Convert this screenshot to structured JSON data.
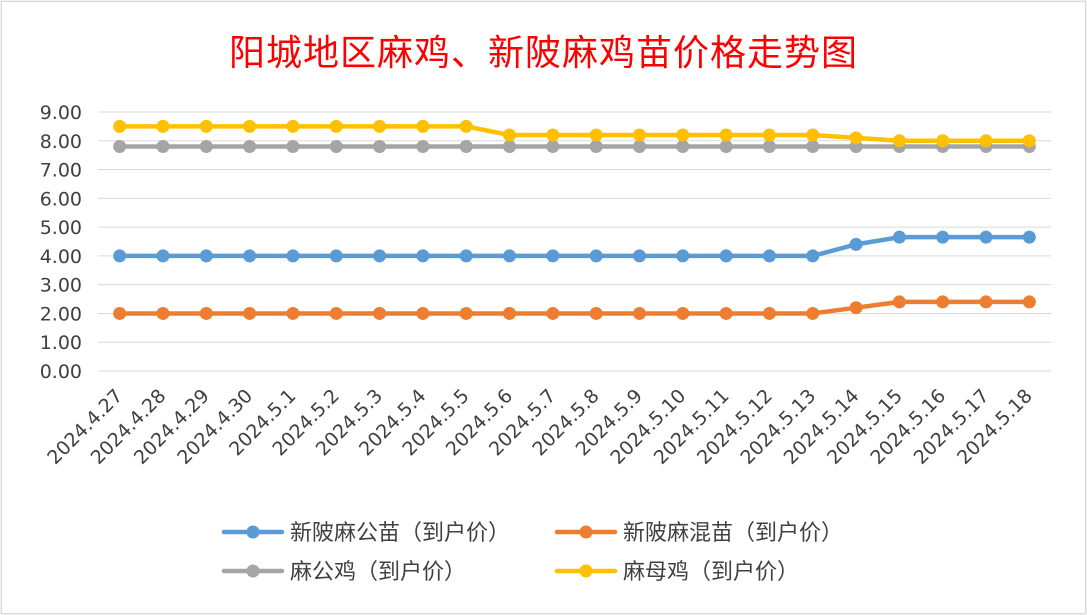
{
  "chart_data": {
    "type": "line",
    "title": "阳城地区麻鸡、新陂麻鸡苗价格走势图",
    "xlabel": "",
    "ylabel": "",
    "ylim": [
      0,
      9
    ],
    "ytick_step": 1,
    "ytick_labels": [
      "0.00",
      "1.00",
      "2.00",
      "3.00",
      "4.00",
      "5.00",
      "6.00",
      "7.00",
      "8.00",
      "9.00"
    ],
    "categories": [
      "2024.4.27",
      "2024.4.28",
      "2024.4.29",
      "2024.4.30",
      "2024.5.1",
      "2024.5.2",
      "2024.5.3",
      "2024.5.4",
      "2024.5.5",
      "2024.5.6",
      "2024.5.7",
      "2024.5.8",
      "2024.5.9",
      "2024.5.10",
      "2024.5.11",
      "2024.5.12",
      "2024.5.13",
      "2024.5.14",
      "2024.5.15",
      "2024.5.16",
      "2024.5.17",
      "2024.5.18"
    ],
    "grid": true,
    "legend_position": "bottom",
    "series": [
      {
        "name": "新陂麻公苗（到户价）",
        "color": "#5b9bd5",
        "values": [
          4.0,
          4.0,
          4.0,
          4.0,
          4.0,
          4.0,
          4.0,
          4.0,
          4.0,
          4.0,
          4.0,
          4.0,
          4.0,
          4.0,
          4.0,
          4.0,
          4.0,
          4.4,
          4.65,
          4.65,
          4.65,
          4.65
        ]
      },
      {
        "name": "新陂麻混苗（到户价）",
        "color": "#ed7d31",
        "values": [
          2.0,
          2.0,
          2.0,
          2.0,
          2.0,
          2.0,
          2.0,
          2.0,
          2.0,
          2.0,
          2.0,
          2.0,
          2.0,
          2.0,
          2.0,
          2.0,
          2.0,
          2.2,
          2.4,
          2.4,
          2.4,
          2.4
        ]
      },
      {
        "name": "麻公鸡（到户价）",
        "color": "#a5a5a5",
        "values": [
          7.8,
          7.8,
          7.8,
          7.8,
          7.8,
          7.8,
          7.8,
          7.8,
          7.8,
          7.8,
          7.8,
          7.8,
          7.8,
          7.8,
          7.8,
          7.8,
          7.8,
          7.8,
          7.8,
          7.8,
          7.8,
          7.8
        ]
      },
      {
        "name": "麻母鸡（到户价）",
        "color": "#ffc000",
        "values": [
          8.5,
          8.5,
          8.5,
          8.5,
          8.5,
          8.5,
          8.5,
          8.5,
          8.5,
          8.2,
          8.2,
          8.2,
          8.2,
          8.2,
          8.2,
          8.2,
          8.2,
          8.1,
          8.0,
          8.0,
          8.0,
          8.0
        ]
      }
    ]
  }
}
